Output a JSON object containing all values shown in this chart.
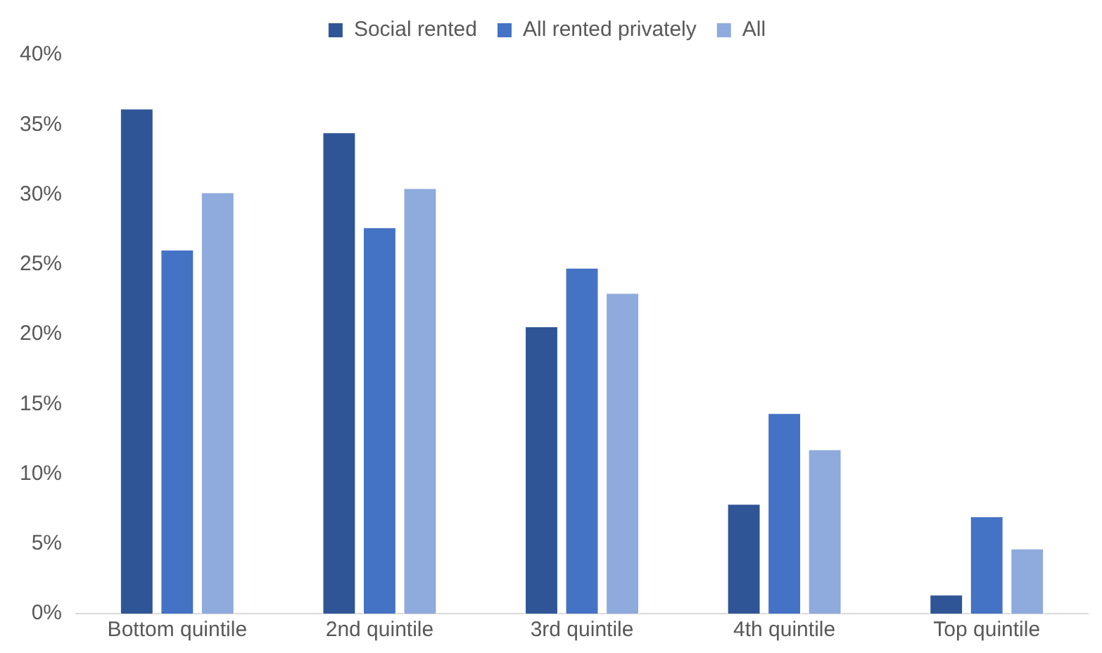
{
  "chart_data": {
    "type": "bar",
    "categories": [
      "Bottom quintile",
      "2nd quintile",
      "3rd quintile",
      "4th quintile",
      "Top quintile"
    ],
    "series": [
      {
        "name": "Social rented",
        "color": "#2f5597",
        "values": [
          36.2,
          34.5,
          20.6,
          7.9,
          1.4
        ]
      },
      {
        "name": "All rented privately",
        "color": "#4472c4",
        "values": [
          26.1,
          27.7,
          24.8,
          14.4,
          7.0
        ]
      },
      {
        "name": "All",
        "color": "#8faadc",
        "values": [
          30.2,
          30.5,
          23.0,
          11.8,
          4.7
        ]
      }
    ],
    "ylim": [
      0,
      40
    ],
    "yticks": [
      {
        "value": 0,
        "label": "0%"
      },
      {
        "value": 5,
        "label": "5%"
      },
      {
        "value": 10,
        "label": "10%"
      },
      {
        "value": 15,
        "label": "15%"
      },
      {
        "value": 20,
        "label": "20%"
      },
      {
        "value": 25,
        "label": "25%"
      },
      {
        "value": 30,
        "label": "30%"
      },
      {
        "value": 35,
        "label": "35%"
      },
      {
        "value": 40,
        "label": "40%"
      }
    ],
    "grid": false,
    "legend": "top"
  }
}
